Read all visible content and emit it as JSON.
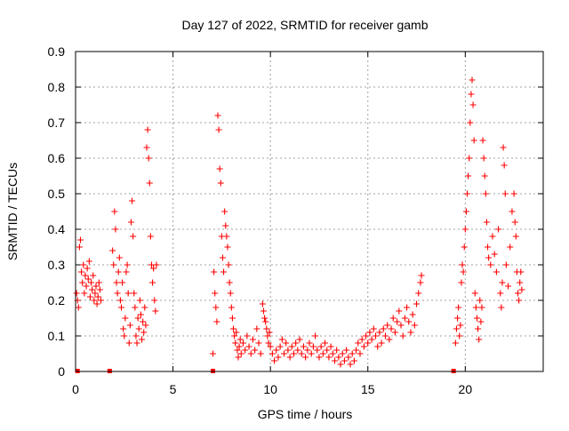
{
  "chart_data": {
    "type": "scatter",
    "title": "Day 127 of 2022, SRMTID for receiver gamb",
    "xlabel": "GPS time / hours",
    "ylabel": "SRMTID / TECUs",
    "xlim": [
      0,
      24
    ],
    "ylim": [
      0,
      0.9
    ],
    "xticks": [
      0,
      5,
      10,
      15,
      20
    ],
    "yticks": [
      0,
      0.1,
      0.2,
      0.3,
      0.4,
      0.5,
      0.6,
      0.7,
      0.8,
      0.9
    ],
    "grid": true,
    "marker": "+",
    "color": "#ff0000",
    "series": [
      {
        "name": "SRMTID",
        "points": [
          [
            0.05,
            0.22
          ],
          [
            0.1,
            0.2
          ],
          [
            0.15,
            0.18
          ],
          [
            0.2,
            0.35
          ],
          [
            0.25,
            0.37
          ],
          [
            0.3,
            0.28
          ],
          [
            0.35,
            0.25
          ],
          [
            0.4,
            0.3
          ],
          [
            0.45,
            0.22
          ],
          [
            0.5,
            0.27
          ],
          [
            0.55,
            0.24
          ],
          [
            0.6,
            0.29
          ],
          [
            0.65,
            0.26
          ],
          [
            0.7,
            0.31
          ],
          [
            0.75,
            0.21
          ],
          [
            0.8,
            0.25
          ],
          [
            0.85,
            0.23
          ],
          [
            0.9,
            0.27
          ],
          [
            0.95,
            0.2
          ],
          [
            1.0,
            0.22
          ],
          [
            1.05,
            0.24
          ],
          [
            1.1,
            0.19
          ],
          [
            1.15,
            0.21
          ],
          [
            1.2,
            0.25
          ],
          [
            1.25,
            0.23
          ],
          [
            1.3,
            0.2
          ],
          [
            1.9,
            0.34
          ],
          [
            1.95,
            0.3
          ],
          [
            2.0,
            0.45
          ],
          [
            2.05,
            0.4
          ],
          [
            2.1,
            0.25
          ],
          [
            2.15,
            0.22
          ],
          [
            2.2,
            0.28
          ],
          [
            2.25,
            0.32
          ],
          [
            2.3,
            0.2
          ],
          [
            2.35,
            0.18
          ],
          [
            2.4,
            0.25
          ],
          [
            2.45,
            0.12
          ],
          [
            2.5,
            0.1
          ],
          [
            2.55,
            0.15
          ],
          [
            2.6,
            0.28
          ],
          [
            2.65,
            0.3
          ],
          [
            2.7,
            0.22
          ],
          [
            2.75,
            0.08
          ],
          [
            2.8,
            0.13
          ],
          [
            2.85,
            0.42
          ],
          [
            2.9,
            0.48
          ],
          [
            2.95,
            0.38
          ],
          [
            3.0,
            0.22
          ],
          [
            3.05,
            0.18
          ],
          [
            3.1,
            0.1
          ],
          [
            3.15,
            0.08
          ],
          [
            3.2,
            0.15
          ],
          [
            3.25,
            0.12
          ],
          [
            3.3,
            0.2
          ],
          [
            3.35,
            0.16
          ],
          [
            3.4,
            0.09
          ],
          [
            3.45,
            0.14
          ],
          [
            3.5,
            0.11
          ],
          [
            3.55,
            0.18
          ],
          [
            3.6,
            0.13
          ],
          [
            3.65,
            0.63
          ],
          [
            3.7,
            0.68
          ],
          [
            3.75,
            0.6
          ],
          [
            3.8,
            0.53
          ],
          [
            3.85,
            0.38
          ],
          [
            3.9,
            0.3
          ],
          [
            3.95,
            0.25
          ],
          [
            4.0,
            0.29
          ],
          [
            4.05,
            0.2
          ],
          [
            4.1,
            0.17
          ],
          [
            4.15,
            0.3
          ],
          [
            7.05,
            0.05
          ],
          [
            7.1,
            0.28
          ],
          [
            7.15,
            0.22
          ],
          [
            7.2,
            0.18
          ],
          [
            7.25,
            0.14
          ],
          [
            7.3,
            0.72
          ],
          [
            7.35,
            0.68
          ],
          [
            7.4,
            0.57
          ],
          [
            7.45,
            0.53
          ],
          [
            7.5,
            0.38
          ],
          [
            7.55,
            0.32
          ],
          [
            7.6,
            0.28
          ],
          [
            7.65,
            0.45
          ],
          [
            7.7,
            0.41
          ],
          [
            7.75,
            0.38
          ],
          [
            7.8,
            0.35
          ],
          [
            7.85,
            0.3
          ],
          [
            7.9,
            0.25
          ],
          [
            7.95,
            0.22
          ],
          [
            8.0,
            0.18
          ],
          [
            8.05,
            0.15
          ],
          [
            8.1,
            0.12
          ],
          [
            8.15,
            0.1
          ],
          [
            8.2,
            0.08
          ],
          [
            8.25,
            0.11
          ],
          [
            8.3,
            0.06
          ],
          [
            8.35,
            0.04
          ],
          [
            8.4,
            0.07
          ],
          [
            8.45,
            0.09
          ],
          [
            8.5,
            0.05
          ],
          [
            8.6,
            0.08
          ],
          [
            8.7,
            0.06
          ],
          [
            8.8,
            0.1
          ],
          [
            8.9,
            0.07
          ],
          [
            9.0,
            0.05
          ],
          [
            9.1,
            0.09
          ],
          [
            9.2,
            0.06
          ],
          [
            9.3,
            0.12
          ],
          [
            9.4,
            0.08
          ],
          [
            9.5,
            0.05
          ],
          [
            9.6,
            0.19
          ],
          [
            9.65,
            0.17
          ],
          [
            9.7,
            0.15
          ],
          [
            9.75,
            0.14
          ],
          [
            9.8,
            0.12
          ],
          [
            9.85,
            0.1
          ],
          [
            9.9,
            0.08
          ],
          [
            9.95,
            0.11
          ],
          [
            10.0,
            0.07
          ],
          [
            10.1,
            0.05
          ],
          [
            10.2,
            0.03
          ],
          [
            10.3,
            0.06
          ],
          [
            10.4,
            0.04
          ],
          [
            10.5,
            0.07
          ],
          [
            10.6,
            0.09
          ],
          [
            10.7,
            0.05
          ],
          [
            10.8,
            0.08
          ],
          [
            10.9,
            0.06
          ],
          [
            11.0,
            0.04
          ],
          [
            11.1,
            0.07
          ],
          [
            11.2,
            0.05
          ],
          [
            11.3,
            0.08
          ],
          [
            11.4,
            0.06
          ],
          [
            11.5,
            0.09
          ],
          [
            11.6,
            0.05
          ],
          [
            11.7,
            0.07
          ],
          [
            11.8,
            0.04
          ],
          [
            11.9,
            0.06
          ],
          [
            12.0,
            0.08
          ],
          [
            12.1,
            0.05
          ],
          [
            12.2,
            0.07
          ],
          [
            12.3,
            0.1
          ],
          [
            12.4,
            0.06
          ],
          [
            12.5,
            0.04
          ],
          [
            12.6,
            0.07
          ],
          [
            12.7,
            0.05
          ],
          [
            12.8,
            0.08
          ],
          [
            12.9,
            0.06
          ],
          [
            13.0,
            0.04
          ],
          [
            13.1,
            0.07
          ],
          [
            13.2,
            0.05
          ],
          [
            13.3,
            0.03
          ],
          [
            13.4,
            0.06
          ],
          [
            13.5,
            0.04
          ],
          [
            13.6,
            0.02
          ],
          [
            13.7,
            0.05
          ],
          [
            13.8,
            0.03
          ],
          [
            13.9,
            0.06
          ],
          [
            14.0,
            0.04
          ],
          [
            14.1,
            0.02
          ],
          [
            14.2,
            0.05
          ],
          [
            14.3,
            0.03
          ],
          [
            14.4,
            0.06
          ],
          [
            14.5,
            0.08
          ],
          [
            14.6,
            0.05
          ],
          [
            14.7,
            0.09
          ],
          [
            14.8,
            0.07
          ],
          [
            14.9,
            0.1
          ],
          [
            15.0,
            0.08
          ],
          [
            15.1,
            0.11
          ],
          [
            15.2,
            0.09
          ],
          [
            15.3,
            0.12
          ],
          [
            15.4,
            0.1
          ],
          [
            15.5,
            0.07
          ],
          [
            15.6,
            0.11
          ],
          [
            15.7,
            0.08
          ],
          [
            15.8,
            0.12
          ],
          [
            15.9,
            0.1
          ],
          [
            16.0,
            0.13
          ],
          [
            16.1,
            0.09
          ],
          [
            16.2,
            0.12
          ],
          [
            16.3,
            0.15
          ],
          [
            16.4,
            0.11
          ],
          [
            16.5,
            0.14
          ],
          [
            16.6,
            0.17
          ],
          [
            16.7,
            0.13
          ],
          [
            16.8,
            0.1
          ],
          [
            16.9,
            0.15
          ],
          [
            17.0,
            0.18
          ],
          [
            17.1,
            0.14
          ],
          [
            17.2,
            0.11
          ],
          [
            17.3,
            0.16
          ],
          [
            17.4,
            0.13
          ],
          [
            17.5,
            0.19
          ],
          [
            17.6,
            0.22
          ],
          [
            17.7,
            0.25
          ],
          [
            17.75,
            0.27
          ],
          [
            19.5,
            0.08
          ],
          [
            19.55,
            0.12
          ],
          [
            19.6,
            0.15
          ],
          [
            19.65,
            0.18
          ],
          [
            19.7,
            0.1
          ],
          [
            19.75,
            0.13
          ],
          [
            19.8,
            0.25
          ],
          [
            19.85,
            0.3
          ],
          [
            19.9,
            0.28
          ],
          [
            19.95,
            0.35
          ],
          [
            20.0,
            0.4
          ],
          [
            20.05,
            0.45
          ],
          [
            20.1,
            0.5
          ],
          [
            20.15,
            0.55
          ],
          [
            20.2,
            0.6
          ],
          [
            20.25,
            0.7
          ],
          [
            20.3,
            0.78
          ],
          [
            20.35,
            0.82
          ],
          [
            20.4,
            0.75
          ],
          [
            20.45,
            0.65
          ],
          [
            20.5,
            0.22
          ],
          [
            20.55,
            0.18
          ],
          [
            20.6,
            0.15
          ],
          [
            20.65,
            0.12
          ],
          [
            20.7,
            0.09
          ],
          [
            20.75,
            0.2
          ],
          [
            20.8,
            0.14
          ],
          [
            20.85,
            0.18
          ],
          [
            20.9,
            0.65
          ],
          [
            20.95,
            0.6
          ],
          [
            21.0,
            0.55
          ],
          [
            21.05,
            0.5
          ],
          [
            21.1,
            0.42
          ],
          [
            21.15,
            0.35
          ],
          [
            21.2,
            0.32
          ],
          [
            21.3,
            0.3
          ],
          [
            21.4,
            0.38
          ],
          [
            21.5,
            0.33
          ],
          [
            21.6,
            0.28
          ],
          [
            21.7,
            0.4
          ],
          [
            21.8,
            0.22
          ],
          [
            21.85,
            0.18
          ],
          [
            21.9,
            0.25
          ],
          [
            21.95,
            0.63
          ],
          [
            22.0,
            0.58
          ],
          [
            22.05,
            0.5
          ],
          [
            22.1,
            0.3
          ],
          [
            22.2,
            0.24
          ],
          [
            22.3,
            0.35
          ],
          [
            22.4,
            0.45
          ],
          [
            22.5,
            0.5
          ],
          [
            22.55,
            0.42
          ],
          [
            22.6,
            0.38
          ],
          [
            22.65,
            0.28
          ],
          [
            22.7,
            0.22
          ],
          [
            22.75,
            0.2
          ],
          [
            22.8,
            0.25
          ],
          [
            22.85,
            0.28
          ],
          [
            22.9,
            0.23
          ]
        ]
      }
    ],
    "baseline_markers": [
      0.1,
      1.75,
      7.05,
      19.4
    ]
  }
}
